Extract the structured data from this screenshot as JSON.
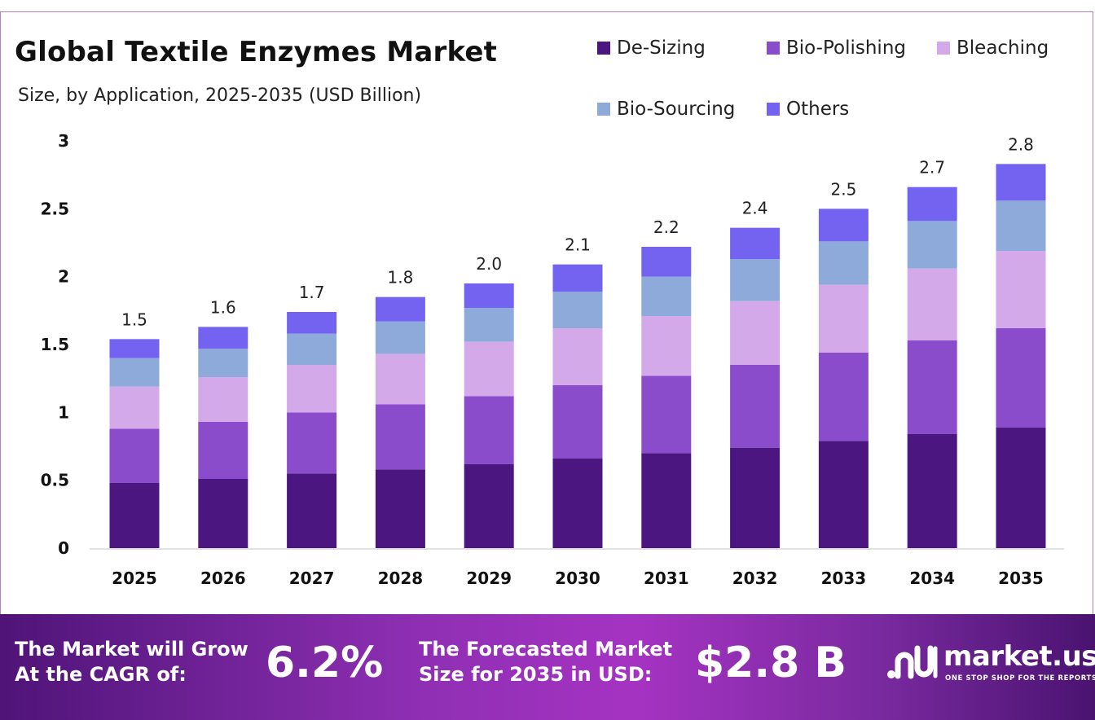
{
  "header": {
    "title": "Global Textile Enzymes Market",
    "subtitle": "Size, by Application, 2025-2035 (USD Billion)"
  },
  "colors": {
    "de_sizing": "#4c1680",
    "bio_polishing": "#8a4ccb",
    "bleaching": "#d4a9ea",
    "bio_sourcing": "#8eaadb",
    "others": "#7463f0",
    "footer_accent": "#9b31bc"
  },
  "legend": [
    {
      "label": "De-Sizing",
      "color": "#4c1680"
    },
    {
      "label": "Bio-Polishing",
      "color": "#8a4ccb"
    },
    {
      "label": "Bleaching",
      "color": "#d4a9ea"
    },
    {
      "label": "Bio-Sourcing",
      "color": "#8eaadb"
    },
    {
      "label": "Others",
      "color": "#7463f0"
    }
  ],
  "chart_data": {
    "type": "bar",
    "stacked": true,
    "categories": [
      "2025",
      "2026",
      "2027",
      "2028",
      "2029",
      "2030",
      "2031",
      "2032",
      "2033",
      "2034",
      "2035"
    ],
    "series": [
      {
        "name": "De-Sizing",
        "color": "#4c1680",
        "values": [
          0.48,
          0.51,
          0.55,
          0.58,
          0.62,
          0.66,
          0.7,
          0.74,
          0.79,
          0.84,
          0.89
        ]
      },
      {
        "name": "Bio-Polishing",
        "color": "#8a4ccb",
        "values": [
          0.4,
          0.42,
          0.45,
          0.48,
          0.5,
          0.54,
          0.57,
          0.61,
          0.65,
          0.69,
          0.73
        ]
      },
      {
        "name": "Bleaching",
        "color": "#d4a9ea",
        "values": [
          0.31,
          0.33,
          0.35,
          0.37,
          0.4,
          0.42,
          0.44,
          0.47,
          0.5,
          0.53,
          0.57
        ]
      },
      {
        "name": "Bio-Sourcing",
        "color": "#8eaadb",
        "values": [
          0.21,
          0.21,
          0.23,
          0.24,
          0.25,
          0.27,
          0.29,
          0.31,
          0.32,
          0.35,
          0.37
        ]
      },
      {
        "name": "Others",
        "color": "#7463f0",
        "values": [
          0.14,
          0.16,
          0.16,
          0.18,
          0.18,
          0.2,
          0.22,
          0.23,
          0.24,
          0.25,
          0.27
        ]
      }
    ],
    "totals": [
      "1.5",
      "1.6",
      "1.7",
      "1.8",
      "2.0",
      "2.1",
      "2.2",
      "2.4",
      "2.5",
      "2.7",
      "2.8"
    ],
    "ylim": [
      0,
      3
    ],
    "yticks": [
      "0",
      "0.5",
      "1",
      "1.5",
      "2",
      "2.5",
      "3"
    ],
    "grid": false,
    "legend_position": "top-right"
  },
  "footer": {
    "cagr_text_line1": "The Market will Grow",
    "cagr_text_line2": "At the CAGR of:",
    "cagr_value": "6.2%",
    "forecast_text_line1": "The Forecasted Market",
    "forecast_text_line2": "Size for 2035 in USD:",
    "forecast_value": "$2.8 B",
    "brand_name": "market.us",
    "brand_tagline": "ONE STOP SHOP FOR THE REPORTS"
  }
}
